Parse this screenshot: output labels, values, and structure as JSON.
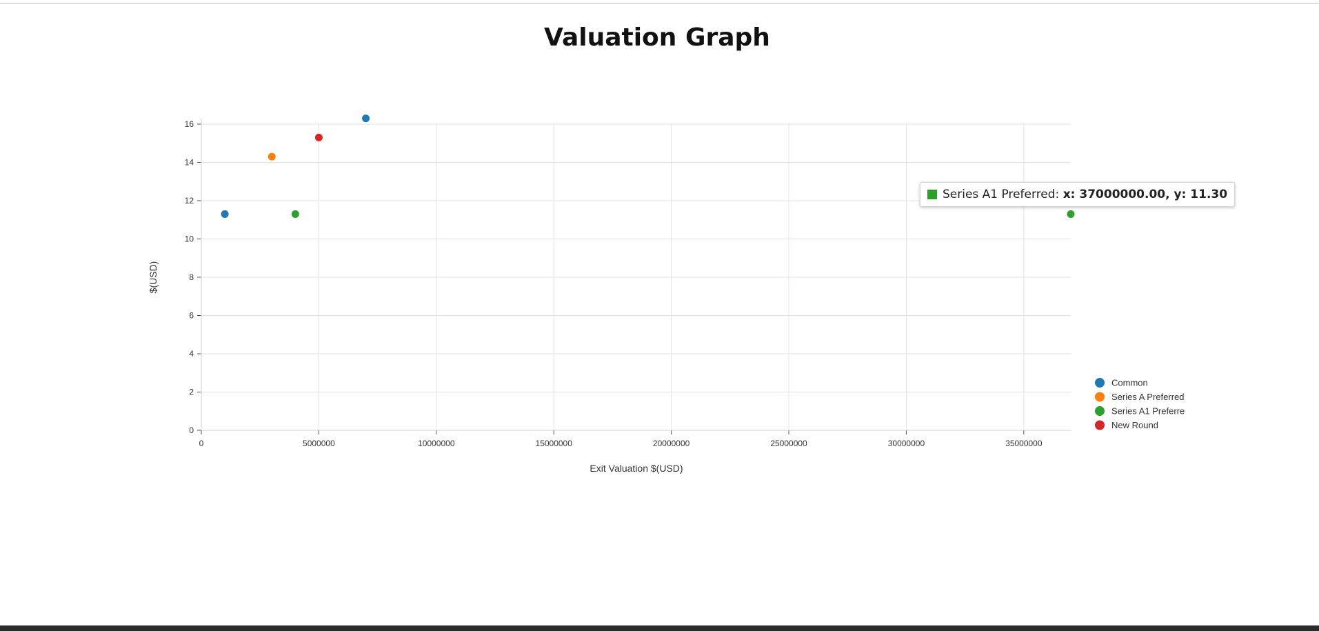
{
  "page": {
    "title": "Valuation Graph"
  },
  "chart_data": {
    "type": "scatter",
    "xlabel": "Exit Valuation $(USD)",
    "ylabel": "$(USD)",
    "xlim": [
      0,
      37000000
    ],
    "ylim": [
      0,
      16
    ],
    "x_ticks": [
      0,
      5000000,
      10000000,
      15000000,
      20000000,
      25000000,
      30000000,
      35000000
    ],
    "y_ticks": [
      0,
      2,
      4,
      6,
      8,
      10,
      12,
      14,
      16
    ],
    "grid": true,
    "legend_position": "bottom-right",
    "series": [
      {
        "name": "Common",
        "legend_label": "Common",
        "color": "#1f77b4",
        "points": [
          {
            "x": 1000000,
            "y": 11.3
          },
          {
            "x": 7000000,
            "y": 16.3
          }
        ]
      },
      {
        "name": "Series A Preferred",
        "legend_label": "Series A Preferred",
        "color": "#ff7f0e",
        "points": [
          {
            "x": 3000000,
            "y": 14.3
          }
        ]
      },
      {
        "name": "Series A1 Preferred",
        "legend_label": "Series A1 Preferre",
        "color": "#2ca02c",
        "points": [
          {
            "x": 4000000,
            "y": 11.3
          },
          {
            "x": 37000000,
            "y": 11.3
          }
        ]
      },
      {
        "name": "New Round",
        "legend_label": "New Round",
        "color": "#d62728",
        "points": [
          {
            "x": 5000000,
            "y": 15.3
          }
        ]
      }
    ]
  },
  "tooltip": {
    "series": "Series A1 Preferred:",
    "value": "x: 37000000.00, y: 11.30",
    "color": "#2ca02c"
  }
}
